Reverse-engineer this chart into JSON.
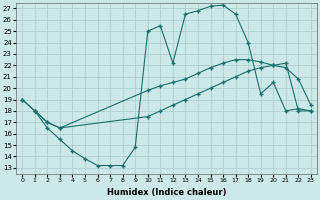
{
  "xlabel": "Humidex (Indice chaleur)",
  "bg_color": "#cce8e8",
  "line_color": "#1a7070",
  "grid_color": "#aacccc",
  "ylim": [
    13,
    27
  ],
  "xlim": [
    0,
    23
  ],
  "yticks": [
    13,
    14,
    15,
    16,
    17,
    18,
    19,
    20,
    21,
    22,
    23,
    24,
    25,
    26,
    27
  ],
  "xticks": [
    0,
    1,
    2,
    3,
    4,
    5,
    6,
    7,
    8,
    9,
    10,
    11,
    12,
    13,
    14,
    15,
    16,
    17,
    18,
    19,
    20,
    21,
    22,
    23
  ],
  "line1_x": [
    0,
    1,
    2,
    3,
    4,
    5,
    6,
    7,
    8,
    9,
    10,
    11,
    12,
    13,
    14,
    15,
    16,
    17,
    18,
    19,
    20,
    21,
    22,
    23
  ],
  "line1_y": [
    19.0,
    18.0,
    16.5,
    15.5,
    14.5,
    13.8,
    13.2,
    13.2,
    13.2,
    14.8,
    25.0,
    25.5,
    22.2,
    26.5,
    26.8,
    27.2,
    27.3,
    26.5,
    24.0,
    19.5,
    20.5,
    18.0,
    18.2,
    18.0
  ],
  "line2_x": [
    0,
    1,
    2,
    3,
    10,
    11,
    12,
    13,
    14,
    15,
    16,
    17,
    18,
    19,
    20,
    21,
    22,
    23
  ],
  "line2_y": [
    19.0,
    18.0,
    17.0,
    16.5,
    19.8,
    20.2,
    20.5,
    20.8,
    21.3,
    21.8,
    22.2,
    22.5,
    22.5,
    22.3,
    22.0,
    21.8,
    20.8,
    18.5
  ],
  "line3_x": [
    1,
    2,
    3,
    10,
    11,
    12,
    13,
    14,
    15,
    16,
    17,
    18,
    19,
    20,
    21,
    22,
    23
  ],
  "line3_y": [
    18.0,
    17.0,
    16.5,
    17.5,
    18.0,
    18.5,
    19.0,
    19.5,
    20.0,
    20.5,
    21.0,
    21.5,
    21.8,
    22.0,
    22.2,
    18.0,
    18.0
  ]
}
